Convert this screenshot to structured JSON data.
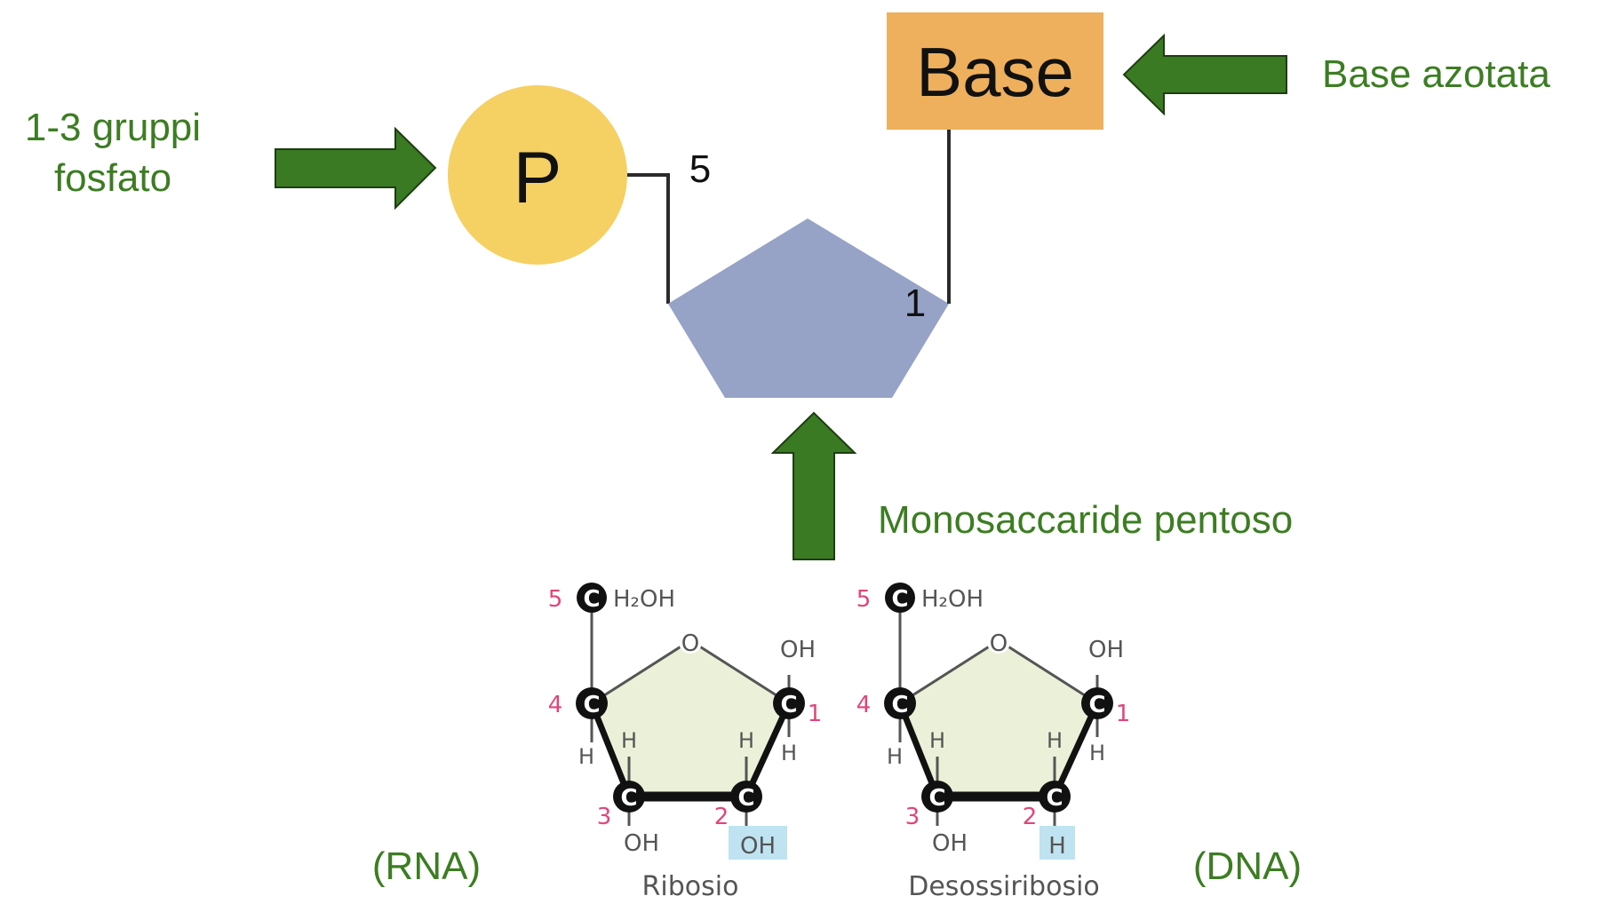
{
  "labels": {
    "phosphate_group": [
      "1-3 gruppi",
      "fosfato"
    ],
    "nitrogenous_base": "Base azotata",
    "pentose_sugar": "Monosaccaride pentoso",
    "rna": "(RNA)",
    "dna": "(DNA)"
  },
  "nucleotide": {
    "phosphate_symbol": "P",
    "base_text": "Base",
    "carbon_5_label": "5",
    "carbon_1_label": "1"
  },
  "sugars": {
    "ribose": {
      "caption": "Ribosio",
      "c5_group": "H₂OH",
      "ring_oxygen": "O",
      "c1_group": "OH",
      "c2_group": "OH",
      "c3_group": "OH",
      "hydrogen": "H",
      "carbon_symbol": "C",
      "carbon_numbers": [
        "1",
        "2",
        "3",
        "4",
        "5"
      ]
    },
    "deoxyribose": {
      "caption": "Desossiribosio",
      "c5_group": "H₂OH",
      "ring_oxygen": "O",
      "c1_group": "OH",
      "c2_group": "H",
      "c3_group": "OH",
      "hydrogen": "H",
      "carbon_symbol": "C",
      "carbon_numbers": [
        "1",
        "2",
        "3",
        "4",
        "5"
      ]
    }
  },
  "colors": {
    "arrow_green": "#3a7a23",
    "label_green": "#3c7d22",
    "phosphate_yellow": "#f5d063",
    "base_orange": "#eeb05c",
    "pentose_blue": "#96a2c6",
    "sugar_ring_fill": "#eaf1d8",
    "highlight_blue": "#bfe3f1",
    "carbon_number_pink": "#e0457b"
  }
}
